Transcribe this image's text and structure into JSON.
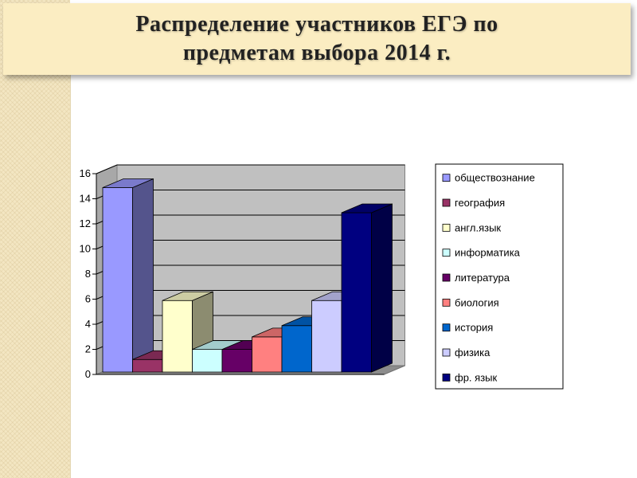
{
  "slide": {
    "title_line1": "Распределение участников ЕГЭ по",
    "title_line2": "предметам выбора 2014 г."
  },
  "chart_data": {
    "type": "bar",
    "style": "3d-clustered-column",
    "title": "",
    "xlabel": "",
    "ylabel": "",
    "ylim": [
      0,
      16
    ],
    "yticks": [
      "0",
      "2",
      "4",
      "6",
      "8",
      "10",
      "12",
      "14",
      "16"
    ],
    "grid": true,
    "legend_position": "right",
    "categories": [
      ""
    ],
    "series": [
      {
        "name": "обществознание",
        "values": [
          14.7
        ],
        "color": "#9999ff"
      },
      {
        "name": "география",
        "values": [
          1
        ],
        "color": "#993366"
      },
      {
        "name": "англ.язык",
        "values": [
          5.7
        ],
        "color": "#ffffcc"
      },
      {
        "name": "информатика",
        "values": [
          1.8
        ],
        "color": "#ccffff"
      },
      {
        "name": "литература",
        "values": [
          1.8
        ],
        "color": "#660066"
      },
      {
        "name": "биология",
        "values": [
          2.8
        ],
        "color": "#ff8080"
      },
      {
        "name": "история",
        "values": [
          3.7
        ],
        "color": "#0066cc"
      },
      {
        "name": "физика",
        "values": [
          5.7
        ],
        "color": "#ccccff"
      },
      {
        "name": "фр. язык",
        "values": [
          12.7
        ],
        "color": "#000080"
      }
    ]
  }
}
